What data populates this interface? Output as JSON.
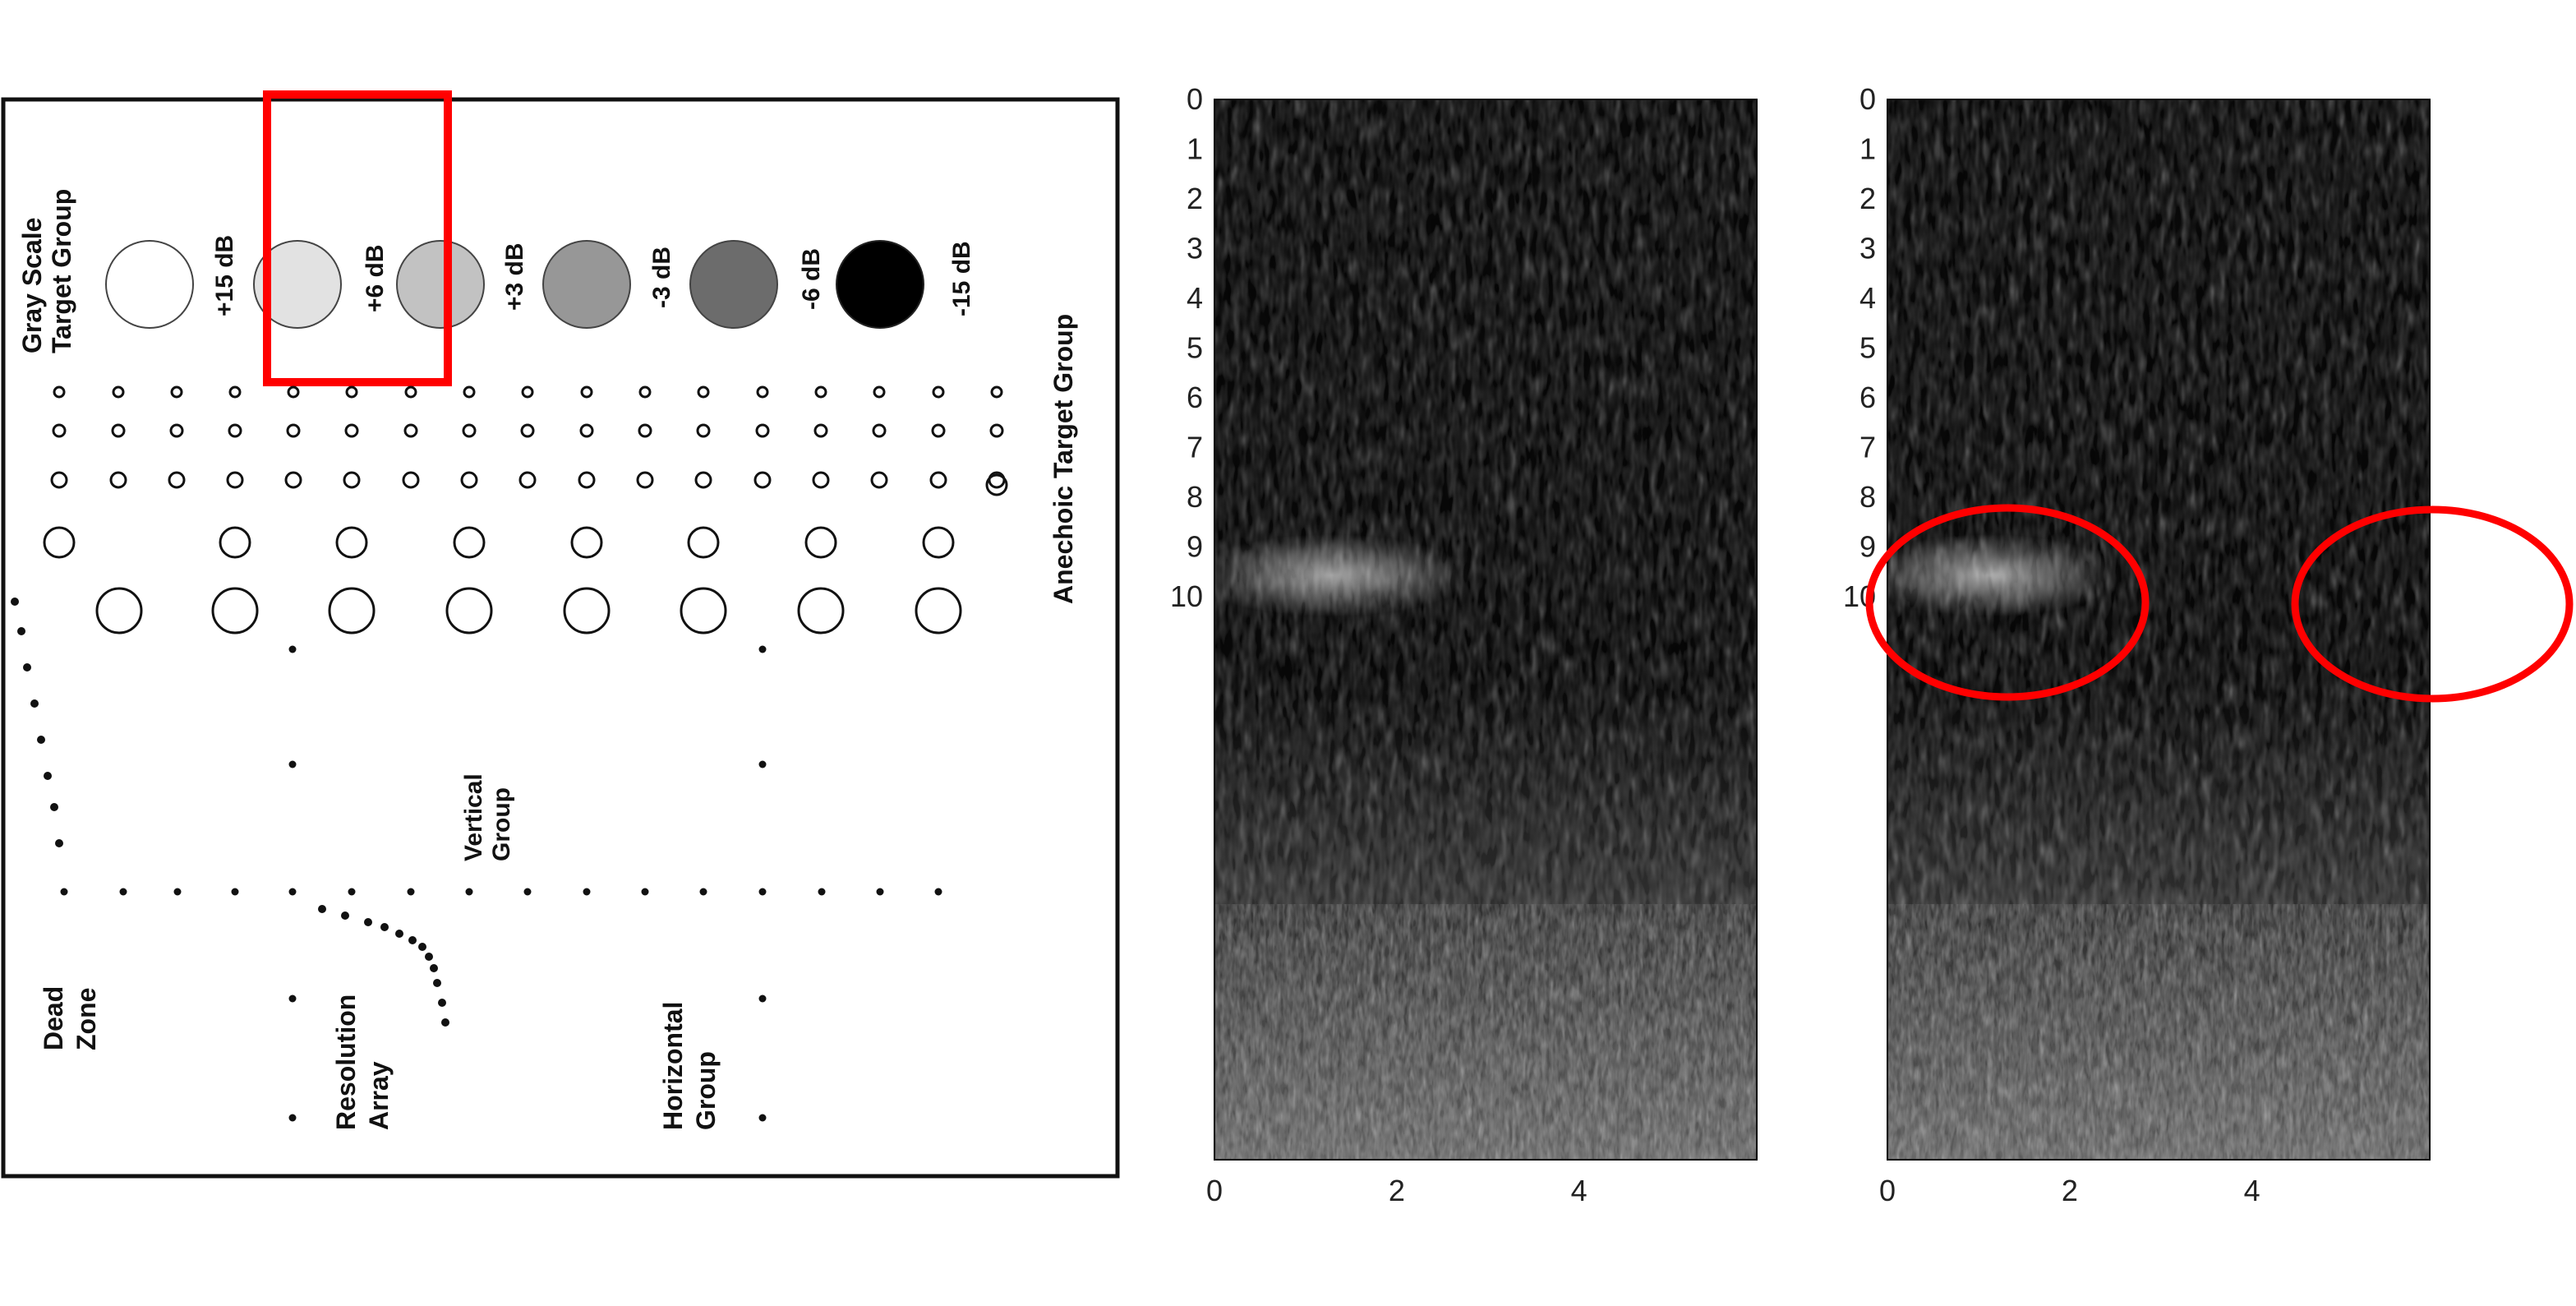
{
  "phantom": {
    "grayscale_group_label": [
      "Gray Scale",
      "Target Group"
    ],
    "grayscale_targets": [
      {
        "label": "+15 dB",
        "fill": "#ffffff"
      },
      {
        "label": "+6 dB",
        "fill": "#e2e2e2"
      },
      {
        "label": "+3 dB",
        "fill": "#c2c2c2"
      },
      {
        "label": "-3 dB",
        "fill": "#979797"
      },
      {
        "label": "-6 dB",
        "fill": "#6c6c6c"
      },
      {
        "label": "-15 dB",
        "fill": "#000000"
      }
    ],
    "anechoic_group_label": "Anechoic Target Group",
    "vertical_group_label": [
      "Vertical",
      "Group"
    ],
    "dead_zone_label": [
      "Dead",
      "Zone"
    ],
    "resolution_array_label": [
      "Resolution",
      "Array"
    ],
    "horizontal_group_label": [
      "Horizontal",
      "Group"
    ],
    "highlight_color": "#ff0000"
  },
  "images": [
    {
      "x_ticks": [
        "0",
        "2",
        "4"
      ],
      "y_ticks": [
        "0",
        "1",
        "2",
        "3",
        "4",
        "5",
        "6",
        "7",
        "8",
        "9",
        "10"
      ]
    },
    {
      "x_ticks": [
        "0",
        "2",
        "4"
      ],
      "y_ticks": [
        "0",
        "1",
        "2",
        "3",
        "4",
        "5",
        "6",
        "7",
        "8",
        "9",
        "10"
      ]
    }
  ]
}
